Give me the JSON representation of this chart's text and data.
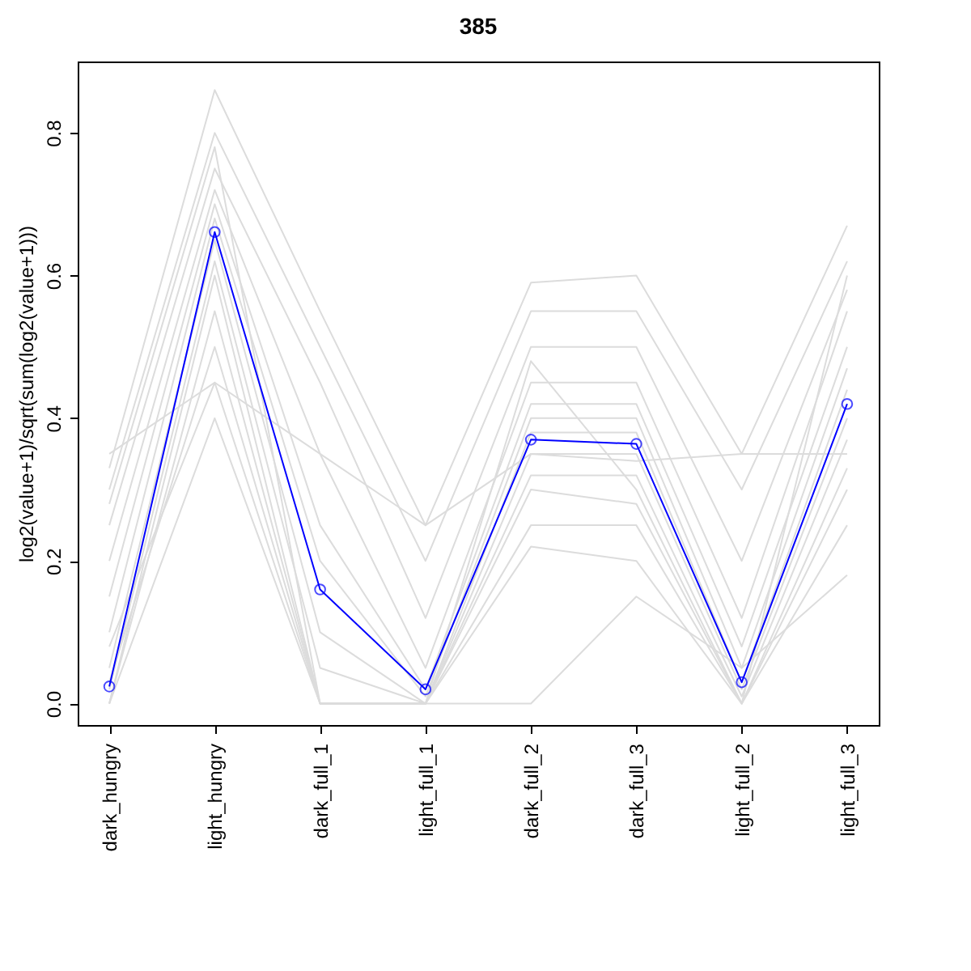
{
  "chart_data": {
    "type": "line",
    "title": "385",
    "ylabel": "log2(value+1)/sqrt(sum(log2(value+1)))",
    "categories": [
      "dark_hungry",
      "light_hungry",
      "dark_full_1",
      "light_full_1",
      "dark_full_2",
      "dark_full_3",
      "light_full_2",
      "light_full_3"
    ],
    "ylim": [
      -0.03,
      0.9
    ],
    "yticks": [
      {
        "value": 0,
        "label": "0.0"
      },
      {
        "value": 0.2,
        "label": "0.2"
      },
      {
        "value": 0.4,
        "label": "0.4"
      },
      {
        "value": 0.6,
        "label": "0.6"
      },
      {
        "value": 0.8,
        "label": "0.8"
      }
    ],
    "grid": false,
    "series": [
      {
        "color": "#dcdcdc",
        "marker": "none",
        "values": [
          0.33,
          0.86,
          0.55,
          0.25,
          0.59,
          0.6,
          0.35,
          0.67
        ]
      },
      {
        "color": "#dcdcdc",
        "marker": "none",
        "values": [
          0.3,
          0.8,
          0.5,
          0.2,
          0.55,
          0.55,
          0.3,
          0.62
        ]
      },
      {
        "color": "#dcdcdc",
        "marker": "none",
        "values": [
          0.25,
          0.75,
          0.45,
          0.12,
          0.5,
          0.5,
          0.2,
          0.58
        ]
      },
      {
        "color": "#dcdcdc",
        "marker": "none",
        "values": [
          0.2,
          0.72,
          0.35,
          0.05,
          0.45,
          0.45,
          0.12,
          0.55
        ]
      },
      {
        "color": "#dcdcdc",
        "marker": "none",
        "values": [
          0.15,
          0.7,
          0.25,
          0.02,
          0.42,
          0.42,
          0.08,
          0.5
        ]
      },
      {
        "color": "#dcdcdc",
        "marker": "none",
        "values": [
          0.1,
          0.68,
          0.2,
          0.01,
          0.4,
          0.4,
          0.05,
          0.47
        ]
      },
      {
        "color": "#dcdcdc",
        "marker": "none",
        "values": [
          0.05,
          0.65,
          0.1,
          0.0,
          0.38,
          0.38,
          0.03,
          0.44
        ]
      },
      {
        "color": "#dcdcdc",
        "marker": "none",
        "values": [
          0.02,
          0.62,
          0.05,
          0.0,
          0.35,
          0.35,
          0.02,
          0.4
        ]
      },
      {
        "color": "#dcdcdc",
        "marker": "none",
        "values": [
          0.0,
          0.6,
          0.0,
          0.0,
          0.32,
          0.32,
          0.01,
          0.37
        ]
      },
      {
        "color": "#dcdcdc",
        "marker": "none",
        "values": [
          0.0,
          0.55,
          0.0,
          0.0,
          0.3,
          0.28,
          0.0,
          0.33
        ]
      },
      {
        "color": "#dcdcdc",
        "marker": "none",
        "values": [
          0.03,
          0.5,
          0.0,
          0.0,
          0.25,
          0.25,
          0.0,
          0.3
        ]
      },
      {
        "color": "#dcdcdc",
        "marker": "none",
        "values": [
          0.08,
          0.45,
          0.0,
          0.0,
          0.22,
          0.2,
          0.0,
          0.25
        ]
      },
      {
        "color": "#dcdcdc",
        "marker": "none",
        "values": [
          0.0,
          0.4,
          0.0,
          0.0,
          0.0,
          0.15,
          0.05,
          0.18
        ]
      },
      {
        "color": "#dcdcdc",
        "marker": "none",
        "values": [
          0.35,
          0.45,
          0.35,
          0.25,
          0.35,
          0.34,
          0.35,
          0.35
        ]
      },
      {
        "color": "#dcdcdc",
        "marker": "none",
        "values": [
          0.28,
          0.78,
          0.0,
          0.0,
          0.48,
          0.3,
          0.0,
          0.6
        ]
      },
      {
        "color": "#0000ff",
        "marker": "circle",
        "values": [
          0.024,
          0.661,
          0.16,
          0.02,
          0.37,
          0.364,
          0.03,
          0.42
        ]
      }
    ]
  }
}
